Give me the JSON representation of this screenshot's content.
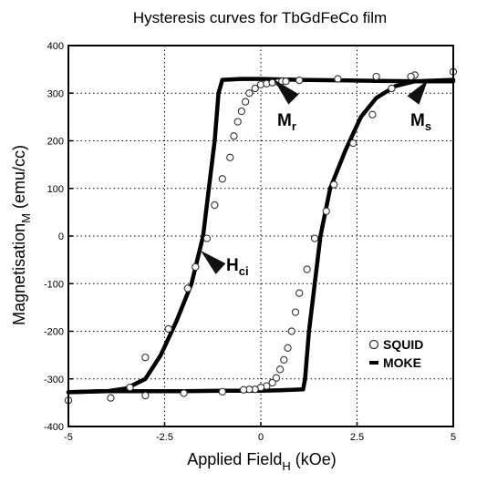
{
  "chart_data": {
    "type": "scatter",
    "title": "Hysteresis curves for TbGdFeCo film",
    "xlabel": {
      "main": "Applied Field",
      "sub": "H",
      "unit": " (kOe)"
    },
    "ylabel": {
      "main": "Magnetisation",
      "sub": "M",
      "unit": " (emu/cc)"
    },
    "xlim": [
      -5,
      5
    ],
    "ylim": [
      -400,
      400
    ],
    "xticks": [
      -5,
      -2.5,
      0,
      2.5,
      5
    ],
    "xtick_labels": [
      "-5",
      "-2.5",
      "0",
      "2.5",
      "5"
    ],
    "yticks": [
      -400,
      -300,
      -200,
      -100,
      0,
      100,
      200,
      300,
      400
    ],
    "ytick_labels": [
      "-400",
      "-300",
      "-200",
      "-100",
      "0",
      "100",
      "200",
      "300",
      "400"
    ],
    "grid": true,
    "legend_position": "bottom-right",
    "series": [
      {
        "name": "SQUID",
        "marker": "open-circle",
        "points": [
          [
            -5,
            -345
          ],
          [
            -3.9,
            -340
          ],
          [
            -3.4,
            -318
          ],
          [
            -3.0,
            -255
          ],
          [
            -2.4,
            -195
          ],
          [
            -1.9,
            -110
          ],
          [
            -1.7,
            -65
          ],
          [
            -1.4,
            -5
          ],
          [
            -1.2,
            65
          ],
          [
            -1.0,
            120
          ],
          [
            -0.8,
            165
          ],
          [
            -0.7,
            210
          ],
          [
            -0.6,
            240
          ],
          [
            -0.5,
            262
          ],
          [
            -0.4,
            282
          ],
          [
            -0.3,
            300
          ],
          [
            -0.15,
            310
          ],
          [
            0,
            318
          ],
          [
            0.15,
            320
          ],
          [
            0.3,
            322
          ],
          [
            0.45,
            323
          ],
          [
            0.55,
            325
          ],
          [
            0.65,
            325
          ],
          [
            1.0,
            327
          ],
          [
            2.0,
            330
          ],
          [
            3.0,
            335
          ],
          [
            4.0,
            338
          ],
          [
            5,
            345
          ],
          [
            3.9,
            335
          ],
          [
            3.4,
            310
          ],
          [
            2.9,
            255
          ],
          [
            2.4,
            195
          ],
          [
            1.9,
            108
          ],
          [
            1.7,
            52
          ],
          [
            1.4,
            -5
          ],
          [
            1.2,
            -70
          ],
          [
            1.0,
            -120
          ],
          [
            0.9,
            -160
          ],
          [
            0.8,
            -200
          ],
          [
            0.7,
            -235
          ],
          [
            0.6,
            -260
          ],
          [
            0.5,
            -280
          ],
          [
            0.4,
            -298
          ],
          [
            0.3,
            -308
          ],
          [
            0.15,
            -315
          ],
          [
            0,
            -318
          ],
          [
            -0.15,
            -322
          ],
          [
            -0.3,
            -322
          ],
          [
            -0.45,
            -323
          ],
          [
            -1.0,
            -327
          ],
          [
            -2.0,
            -330
          ],
          [
            -3.0,
            -335
          ]
        ]
      },
      {
        "name": "MOKE",
        "marker": "line",
        "descending": [
          [
            5,
            325
          ],
          [
            4.2,
            325
          ],
          [
            3.0,
            326
          ],
          [
            2.0,
            327
          ],
          [
            1.0,
            328
          ],
          [
            0.0,
            330
          ],
          [
            -0.5,
            330
          ],
          [
            -1.0,
            328
          ],
          [
            -1.1,
            300
          ],
          [
            -1.2,
            200
          ],
          [
            -1.35,
            100
          ],
          [
            -1.5,
            0
          ],
          [
            -1.8,
            -100
          ],
          [
            -2.2,
            -180
          ],
          [
            -2.6,
            -250
          ],
          [
            -3.0,
            -300
          ],
          [
            -3.5,
            -320
          ],
          [
            -4.0,
            -326
          ],
          [
            -5,
            -328
          ]
        ],
        "ascending": [
          [
            -5,
            -328
          ],
          [
            -4.2,
            -326
          ],
          [
            -3.0,
            -326
          ],
          [
            -2.0,
            -326
          ],
          [
            -1.0,
            -325
          ],
          [
            0.0,
            -325
          ],
          [
            0.5,
            -324
          ],
          [
            1.1,
            -322
          ],
          [
            1.15,
            -300
          ],
          [
            1.25,
            -200
          ],
          [
            1.4,
            -100
          ],
          [
            1.55,
            0
          ],
          [
            1.8,
            100
          ],
          [
            2.2,
            180
          ],
          [
            2.6,
            250
          ],
          [
            3.0,
            290
          ],
          [
            3.5,
            315
          ],
          [
            4.0,
            325
          ],
          [
            5,
            328
          ]
        ]
      }
    ],
    "annotations": [
      {
        "name": "ann-mr",
        "main": "M",
        "sub": "r",
        "x": 0.4,
        "y": 300
      },
      {
        "name": "ann-ms",
        "main": "M",
        "sub": "s",
        "x": 4.3,
        "y": 315
      },
      {
        "name": "ann-hci",
        "main": "H",
        "sub": "ci",
        "x": -1.5,
        "y": -30
      }
    ],
    "legend": [
      {
        "name": "SQUID",
        "label": "SQUID"
      },
      {
        "name": "MOKE",
        "label": "MOKE"
      }
    ]
  }
}
